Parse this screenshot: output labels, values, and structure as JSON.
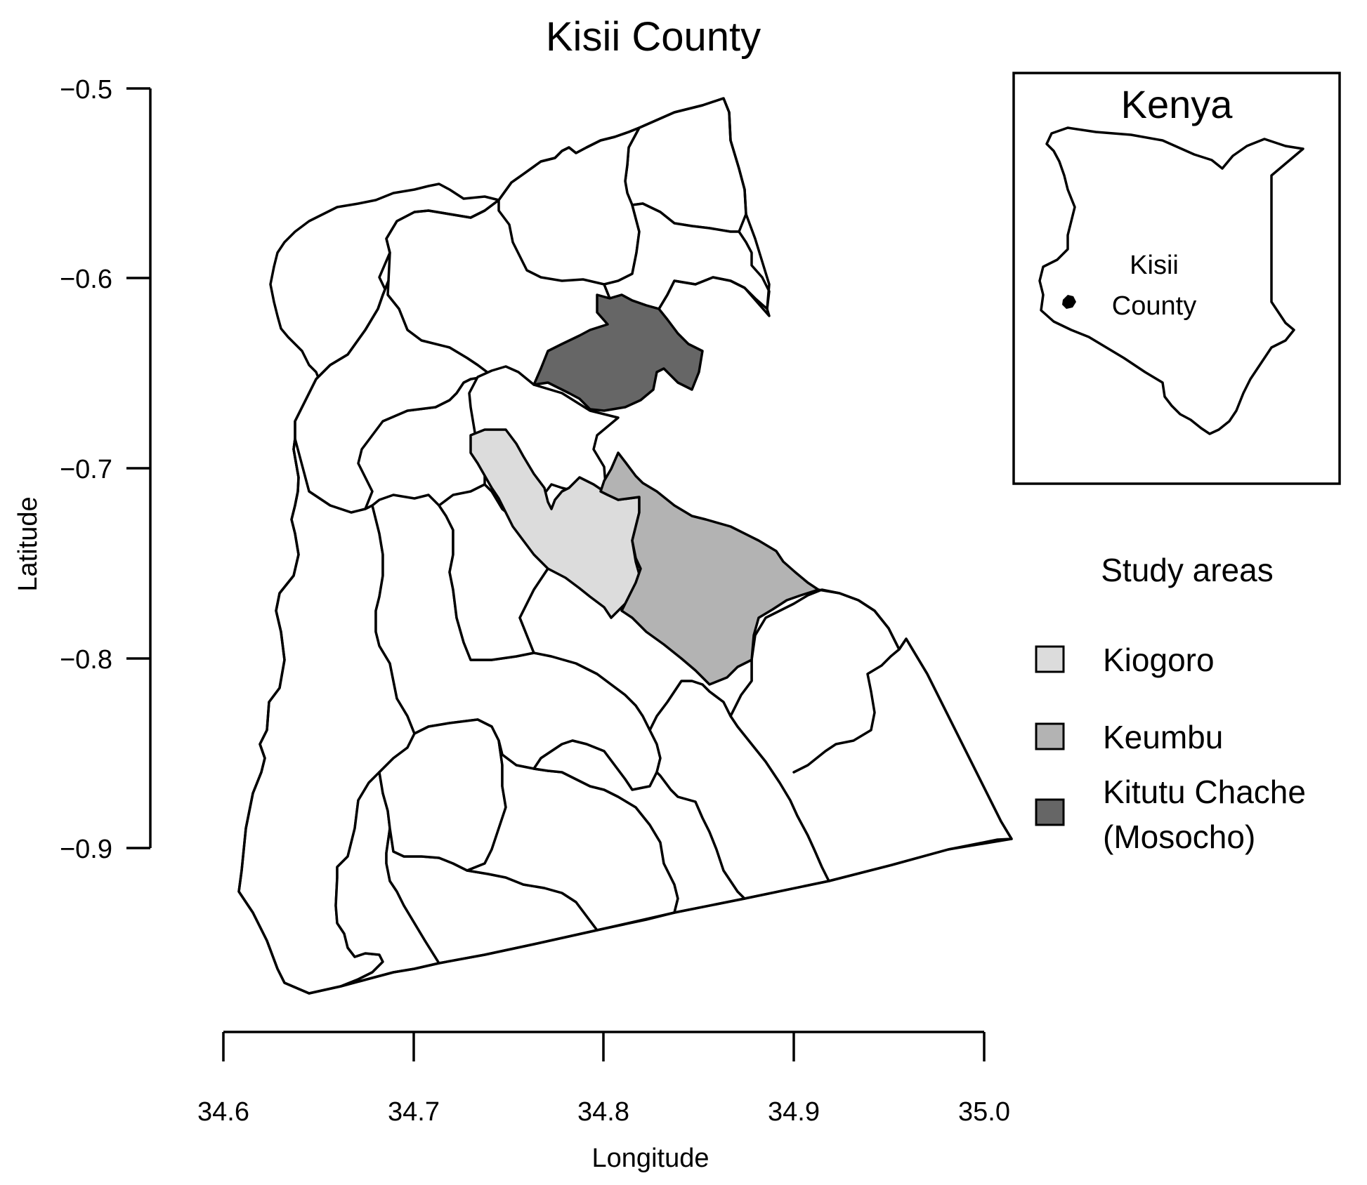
{
  "title": "Kisii County",
  "axes": {
    "x_label": "Longitude",
    "y_label": "Latitude",
    "x_ticks": [
      "34.6",
      "34.7",
      "34.8",
      "34.9",
      "35.0"
    ],
    "y_ticks": [
      "−0.5",
      "−0.6",
      "−0.7",
      "−0.8",
      "−0.9"
    ]
  },
  "inset": {
    "title": "Kenya",
    "label_line1": "Kisii",
    "label_line2": "County"
  },
  "legend": {
    "title": "Study areas",
    "items": [
      {
        "label": "Kiogoro",
        "color": "#dcdcdc"
      },
      {
        "label": "Keumbu",
        "color": "#b3b3b3"
      },
      {
        "label_line1": "Kitutu Chache",
        "label_line2": "(Mosocho)",
        "color": "#666666"
      }
    ]
  },
  "colors": {
    "kiogoro": "#dcdcdc",
    "keumbu": "#b3b3b3",
    "kitutu_chache": "#666666",
    "ward_fill": "#ffffff",
    "outline": "#000000"
  }
}
